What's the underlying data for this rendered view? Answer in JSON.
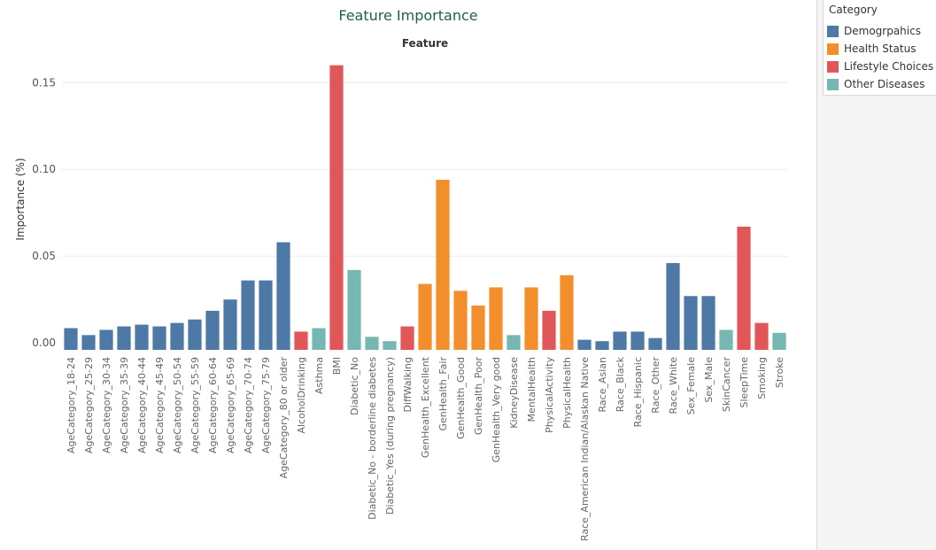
{
  "chart_data": {
    "type": "bar",
    "title": "Feature Importance",
    "xlabel": "Feature",
    "ylabel": "Importance  (%)",
    "ylim": [
      -0.004,
      0.168
    ],
    "yticks": [
      0.0,
      0.05,
      0.1,
      0.15
    ],
    "ytick_labels": [
      "0.00",
      "0.05",
      "0.10",
      "0.15"
    ],
    "grid": true,
    "legend": {
      "title": "Category",
      "position": "right",
      "entries": [
        {
          "name": "Demogrpahics",
          "color": "#4e79a7"
        },
        {
          "name": "Health Status",
          "color": "#f28e2b"
        },
        {
          "name": "Lifestyle Choices",
          "color": "#e15759"
        },
        {
          "name": "Other Diseases",
          "color": "#76b7b2"
        }
      ]
    },
    "categories": [
      "AgeCategory_18-24",
      "AgeCategory_25-29",
      "AgeCategory_30-34",
      "AgeCategory_35-39",
      "AgeCategory_40-44",
      "AgeCategory_45-49",
      "AgeCategory_50-54",
      "AgeCategory_55-59",
      "AgeCategory_60-64",
      "AgeCategory_65-69",
      "AgeCategory_70-74",
      "AgeCategory_75-79",
      "AgeCategory_80 or older",
      "AlcoholDrinking",
      "Asthma",
      "BMI",
      "Diabetic_No",
      "Diabetic_No - borderline diabetes",
      "Diabetic_Yes (during pregnancy)",
      "DiffWalking",
      "GenHealth_Excellent",
      "GenHealth_Fair",
      "GenHealth_Good",
      "GenHealth_Poor",
      "GenHealth_Very good",
      "KidneyDisease",
      "MentalHealth",
      "PhysicalActivity",
      "PhysicalHealth",
      "Race_American Indian/Alaskan Native",
      "Race_Asian",
      "Race_Black",
      "Race_Hispanic",
      "Race_Other",
      "Race_White",
      "Sex_Female",
      "Sex_Male",
      "SkinCancer",
      "SleepTime",
      "Smoking",
      "Stroke"
    ],
    "values": [
      0.0085,
      0.0045,
      0.0075,
      0.0095,
      0.0105,
      0.0095,
      0.0115,
      0.0135,
      0.0185,
      0.025,
      0.036,
      0.036,
      0.058,
      0.0065,
      0.0085,
      0.16,
      0.042,
      0.0035,
      0.001,
      0.0095,
      0.034,
      0.094,
      0.03,
      0.0215,
      0.032,
      0.0045,
      0.032,
      0.0185,
      0.039,
      0.0018,
      0.001,
      0.0065,
      0.0065,
      0.0028,
      0.046,
      0.027,
      0.027,
      0.0075,
      0.067,
      0.0115,
      0.0058
    ],
    "series_categories": [
      "Demogrpahics",
      "Demogrpahics",
      "Demogrpahics",
      "Demogrpahics",
      "Demogrpahics",
      "Demogrpahics",
      "Demogrpahics",
      "Demogrpahics",
      "Demogrpahics",
      "Demogrpahics",
      "Demogrpahics",
      "Demogrpahics",
      "Demogrpahics",
      "Lifestyle Choices",
      "Other Diseases",
      "Lifestyle Choices",
      "Other Diseases",
      "Other Diseases",
      "Other Diseases",
      "Lifestyle Choices",
      "Health Status",
      "Health Status",
      "Health Status",
      "Health Status",
      "Health Status",
      "Other Diseases",
      "Health Status",
      "Lifestyle Choices",
      "Health Status",
      "Demogrpahics",
      "Demogrpahics",
      "Demogrpahics",
      "Demogrpahics",
      "Demogrpahics",
      "Demogrpahics",
      "Demogrpahics",
      "Demogrpahics",
      "Other Diseases",
      "Lifestyle Choices",
      "Lifestyle Choices",
      "Other Diseases"
    ]
  }
}
